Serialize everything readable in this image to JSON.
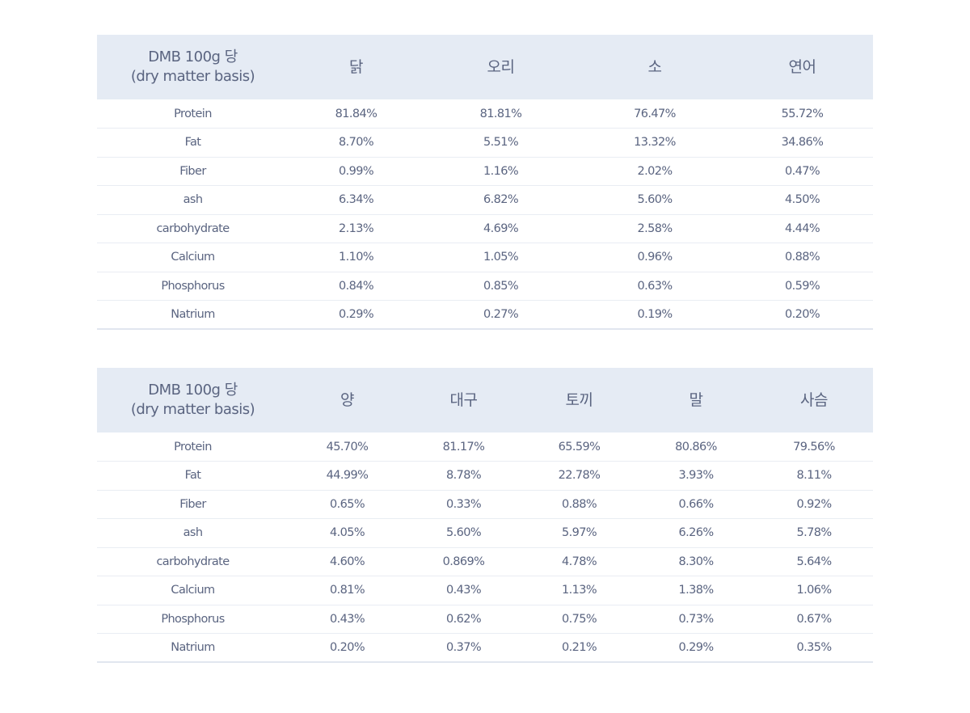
{
  "tables": [
    {
      "header_label_line1": "DMB 100g 당",
      "header_label_line2": "(dry matter basis)",
      "columns": [
        "닭",
        "오리",
        "소",
        "연어"
      ],
      "rows": [
        {
          "label": "Protein",
          "values": [
            "81.84%",
            "81.81%",
            "76.47%",
            "55.72%"
          ]
        },
        {
          "label": "Fat",
          "values": [
            "8.70%",
            "5.51%",
            "13.32%",
            "34.86%"
          ]
        },
        {
          "label": "Fiber",
          "values": [
            "0.99%",
            "1.16%",
            "2.02%",
            "0.47%"
          ]
        },
        {
          "label": "ash",
          "values": [
            "6.34%",
            "6.82%",
            "5.60%",
            "4.50%"
          ]
        },
        {
          "label": "carbohydrate",
          "values": [
            "2.13%",
            "4.69%",
            "2.58%",
            "4.44%"
          ]
        },
        {
          "label": "Calcium",
          "values": [
            "1.10%",
            "1.05%",
            "0.96%",
            "0.88%"
          ]
        },
        {
          "label": "Phosphorus",
          "values": [
            "0.84%",
            "0.85%",
            "0.63%",
            "0.59%"
          ]
        },
        {
          "label": "Natrium",
          "values": [
            "0.29%",
            "0.27%",
            "0.19%",
            "0.20%"
          ]
        }
      ]
    },
    {
      "header_label_line1": "DMB 100g 당",
      "header_label_line2": "(dry matter basis)",
      "columns": [
        "양",
        "대구",
        "토끼",
        "말",
        "사슴"
      ],
      "rows": [
        {
          "label": "Protein",
          "values": [
            "45.70%",
            "81.17%",
            "65.59%",
            "80.86%",
            "79.56%"
          ]
        },
        {
          "label": "Fat",
          "values": [
            "44.99%",
            "8.78%",
            "22.78%",
            "3.93%",
            "8.11%"
          ]
        },
        {
          "label": "Fiber",
          "values": [
            "0.65%",
            "0.33%",
            "0.88%",
            "0.66%",
            "0.92%"
          ]
        },
        {
          "label": "ash",
          "values": [
            "4.05%",
            "5.60%",
            "5.97%",
            "6.26%",
            "5.78%"
          ]
        },
        {
          "label": "carbohydrate",
          "values": [
            "4.60%",
            "0.869%",
            "4.78%",
            "8.30%",
            "5.64%"
          ]
        },
        {
          "label": "Calcium",
          "values": [
            "0.81%",
            "0.43%",
            "1.13%",
            "1.38%",
            "1.06%"
          ]
        },
        {
          "label": "Phosphorus",
          "values": [
            "0.43%",
            "0.62%",
            "0.75%",
            "0.73%",
            "0.67%"
          ]
        },
        {
          "label": "Natrium",
          "values": [
            "0.20%",
            "0.37%",
            "0.21%",
            "0.29%",
            "0.35%"
          ]
        }
      ]
    }
  ],
  "colors": {
    "header_bg": "#e5ebf4",
    "text": "#5a6480",
    "row_divider": "#e9edf3",
    "bottom_border": "#e1e6ef"
  }
}
